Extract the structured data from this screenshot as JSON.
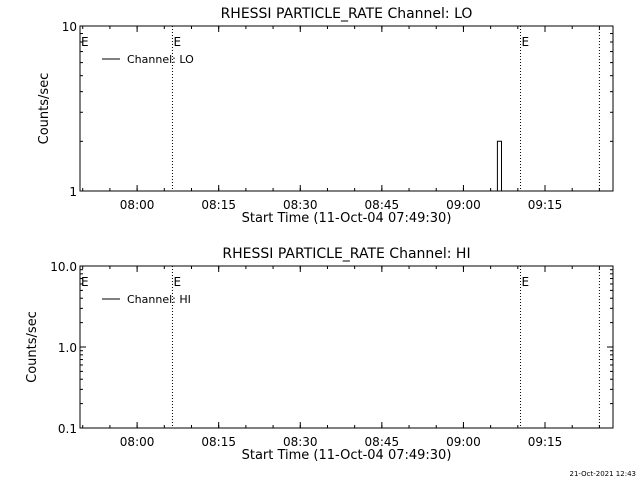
{
  "footer": {
    "timestamp": "21-Oct-2021 12:43"
  },
  "chart_data": [
    {
      "type": "line",
      "title": "RHESSI PARTICLE_RATE Channel: LO",
      "xlabel": "Start Time (11-Oct-04 07:49:30)",
      "ylabel": "Counts/sec",
      "xscale": "time",
      "xlim": [
        "07:49:30",
        "09:27:30"
      ],
      "x_ticks": [
        "08:00",
        "08:15",
        "08:30",
        "08:45",
        "09:00",
        "09:15"
      ],
      "yscale": "log",
      "ylim": [
        1,
        10
      ],
      "y_ticks": [
        "1",
        "10"
      ],
      "legend": {
        "position": "top-left",
        "entries": [
          "Channel: LO"
        ]
      },
      "grid": false,
      "vertical_markers": [
        {
          "time": "08:06:30",
          "label": "E"
        },
        {
          "time": "09:10:30",
          "label": "E"
        },
        {
          "time": "09:25:00",
          "label": ""
        }
      ],
      "series": [
        {
          "name": "Channel: LO",
          "x": [
            "09:06:00",
            "09:06:15",
            "09:06:15",
            "09:07:00",
            "09:07:00",
            "09:07:30"
          ],
          "values": [
            1,
            1,
            2,
            2,
            1,
            1
          ]
        }
      ]
    },
    {
      "type": "line",
      "title": "RHESSI PARTICLE_RATE Channel: HI",
      "xlabel": "Start Time (11-Oct-04 07:49:30)",
      "ylabel": "Counts/sec",
      "xscale": "time",
      "xlim": [
        "07:49:30",
        "09:27:30"
      ],
      "x_ticks": [
        "08:00",
        "08:15",
        "08:30",
        "08:45",
        "09:00",
        "09:15"
      ],
      "yscale": "log",
      "ylim": [
        0.1,
        10
      ],
      "y_ticks": [
        "0.1",
        "1.0",
        "10.0"
      ],
      "legend": {
        "position": "top-left",
        "entries": [
          "Channel: HI"
        ]
      },
      "grid": false,
      "vertical_markers": [
        {
          "time": "08:06:30",
          "label": "E"
        },
        {
          "time": "09:10:30",
          "label": "E"
        },
        {
          "time": "09:25:00",
          "label": ""
        }
      ],
      "series": [
        {
          "name": "Channel: HI",
          "x": [],
          "values": []
        }
      ]
    }
  ]
}
